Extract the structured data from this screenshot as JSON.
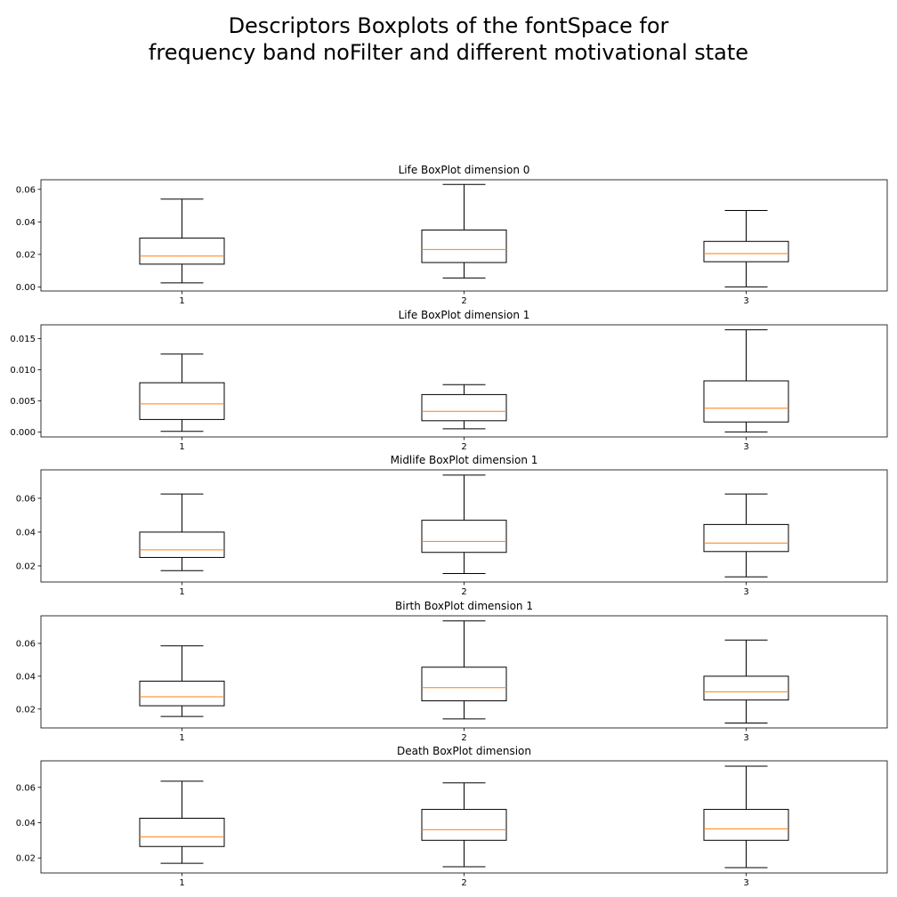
{
  "figure": {
    "suptitle_line1": "Descriptors Boxplots of the fontSpace for",
    "suptitle_line2": "frequency band noFilter and different motivational state"
  },
  "colors": {
    "box": "#000000",
    "median": "#ff7f0e",
    "axes": "#000000",
    "background": "#ffffff"
  },
  "chart_data": [
    {
      "type": "boxplot",
      "title": "Life BoxPlot dimension 0",
      "categories": [
        "1",
        "2",
        "3"
      ],
      "boxes": [
        {
          "whisker_low": 0.0025,
          "q1": 0.014,
          "median": 0.019,
          "q3": 0.03,
          "whisker_high": 0.054
        },
        {
          "whisker_low": 0.0055,
          "q1": 0.015,
          "median": 0.023,
          "q3": 0.035,
          "whisker_high": 0.063
        },
        {
          "whisker_low": 0.0,
          "q1": 0.0155,
          "median": 0.0205,
          "q3": 0.028,
          "whisker_high": 0.047
        }
      ],
      "yticks": [
        0.0,
        0.02,
        0.04,
        0.06
      ],
      "ytick_labels": [
        "0.00",
        "0.02",
        "0.04",
        "0.06"
      ],
      "ylim": [
        -0.0025,
        0.0659
      ],
      "grid": false
    },
    {
      "type": "boxplot",
      "title": "Life BoxPlot dimension 1",
      "categories": [
        "1",
        "2",
        "3"
      ],
      "boxes": [
        {
          "whisker_low": 0.0001,
          "q1": 0.002,
          "median": 0.0045,
          "q3": 0.0079,
          "whisker_high": 0.0125
        },
        {
          "whisker_low": 0.0005,
          "q1": 0.0018,
          "median": 0.0033,
          "q3": 0.006,
          "whisker_high": 0.0076
        },
        {
          "whisker_low": 0.0,
          "q1": 0.0016,
          "median": 0.0038,
          "q3": 0.0082,
          "whisker_high": 0.0164
        }
      ],
      "yticks": [
        0.0,
        0.005,
        0.01,
        0.015
      ],
      "ytick_labels": [
        "0.000",
        "0.005",
        "0.010",
        "0.015"
      ],
      "ylim": [
        -0.0008,
        0.0172
      ],
      "grid": false
    },
    {
      "type": "boxplot",
      "title": "Midlife BoxPlot dimension 1",
      "categories": [
        "1",
        "2",
        "3"
      ],
      "boxes": [
        {
          "whisker_low": 0.0172,
          "q1": 0.025,
          "median": 0.0295,
          "q3": 0.04,
          "whisker_high": 0.0625
        },
        {
          "whisker_low": 0.0155,
          "q1": 0.028,
          "median": 0.0345,
          "q3": 0.047,
          "whisker_high": 0.0737
        },
        {
          "whisker_low": 0.0135,
          "q1": 0.0285,
          "median": 0.0335,
          "q3": 0.0445,
          "whisker_high": 0.0625
        }
      ],
      "yticks": [
        0.02,
        0.04,
        0.06
      ],
      "ytick_labels": [
        "0.02",
        "0.04",
        "0.06"
      ],
      "ylim": [
        0.0105,
        0.0768
      ],
      "grid": false
    },
    {
      "type": "boxplot",
      "title": "Birth BoxPlot dimension 1",
      "categories": [
        "1",
        "2",
        "3"
      ],
      "boxes": [
        {
          "whisker_low": 0.0155,
          "q1": 0.022,
          "median": 0.0275,
          "q3": 0.037,
          "whisker_high": 0.0585
        },
        {
          "whisker_low": 0.014,
          "q1": 0.025,
          "median": 0.033,
          "q3": 0.0455,
          "whisker_high": 0.0737
        },
        {
          "whisker_low": 0.0115,
          "q1": 0.0255,
          "median": 0.0305,
          "q3": 0.04,
          "whisker_high": 0.062
        }
      ],
      "yticks": [
        0.02,
        0.04,
        0.06
      ],
      "ytick_labels": [
        "0.02",
        "0.04",
        "0.06"
      ],
      "ylim": [
        0.0085,
        0.0768
      ],
      "grid": false
    },
    {
      "type": "boxplot",
      "title": "Death BoxPlot dimension",
      "categories": [
        "1",
        "2",
        "3"
      ],
      "boxes": [
        {
          "whisker_low": 0.017,
          "q1": 0.0265,
          "median": 0.032,
          "q3": 0.0425,
          "whisker_high": 0.0635
        },
        {
          "whisker_low": 0.015,
          "q1": 0.03,
          "median": 0.036,
          "q3": 0.0475,
          "whisker_high": 0.0625
        },
        {
          "whisker_low": 0.0145,
          "q1": 0.03,
          "median": 0.0365,
          "q3": 0.0475,
          "whisker_high": 0.072
        }
      ],
      "yticks": [
        0.02,
        0.04,
        0.06
      ],
      "ytick_labels": [
        "0.02",
        "0.04",
        "0.06"
      ],
      "ylim": [
        0.0115,
        0.075
      ],
      "grid": false
    }
  ]
}
